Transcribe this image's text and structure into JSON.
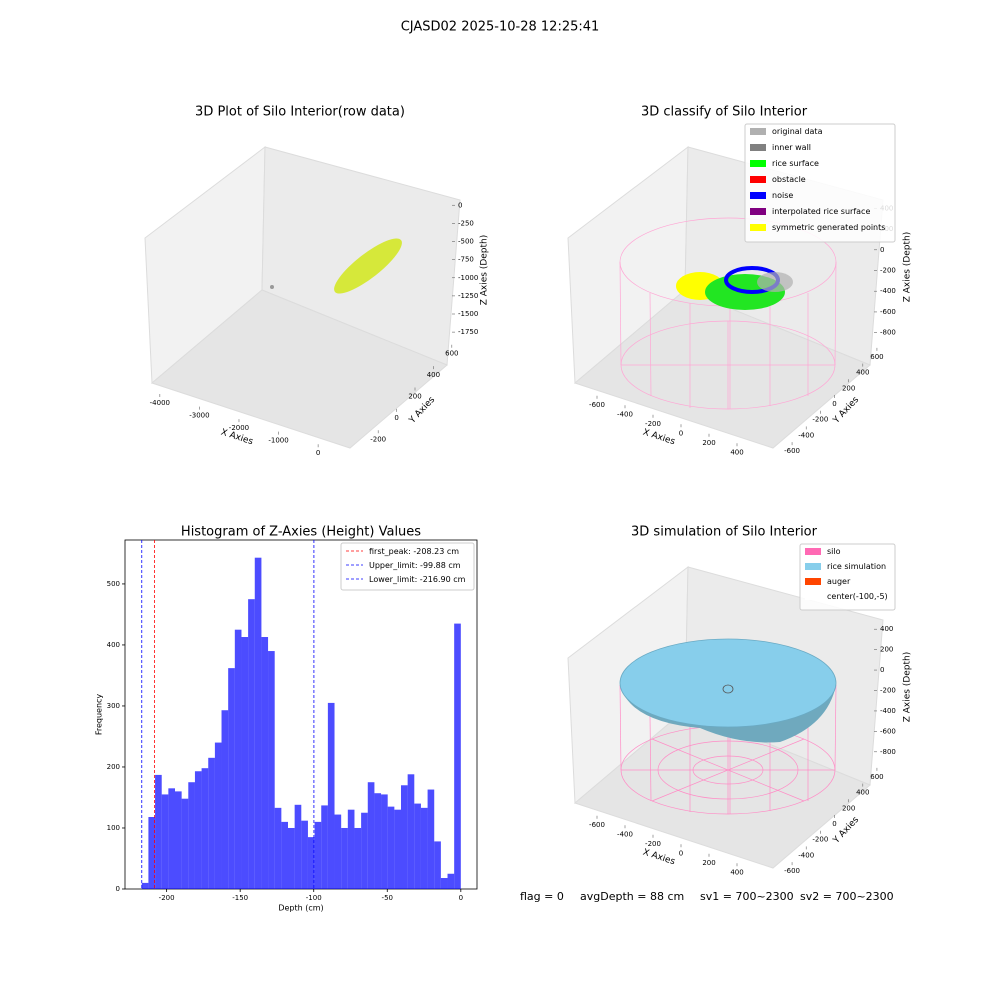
{
  "title": "CJASD02 2025-10-28 12:25:41",
  "chart_data": [
    {
      "type": "scatter3d",
      "title": "3D Plot of Silo Interior(row data)",
      "xlabel": "X Axies",
      "ylabel": "Y Axies",
      "zlabel": "Z Axies (Depth)",
      "xlim": [
        -4400,
        300
      ],
      "xticks": [
        -4000,
        -3000,
        -2000,
        -1000,
        0
      ],
      "ylim": [
        -300,
        700
      ],
      "yticks": [
        -200,
        0,
        200,
        400,
        600
      ],
      "zlim": [
        -1900,
        100
      ],
      "zticks": [
        -1750,
        -1500,
        -1250,
        -1000,
        -750,
        -500,
        -250,
        0
      ]
    },
    {
      "type": "scatter3d",
      "title": "3D classify of Silo Interior",
      "xlabel": "X Axies",
      "ylabel": "Y Axies",
      "zlabel": "Z Axies (Depth)",
      "xlim": [
        -700,
        500
      ],
      "xticks": [
        -600,
        -400,
        -200,
        0,
        200,
        400
      ],
      "ylim": [
        -700,
        700
      ],
      "yticks": [
        -600,
        -400,
        -200,
        0,
        200,
        400,
        600
      ],
      "zlim": [
        -900,
        500
      ],
      "zticks": [
        -800,
        -600,
        -400,
        -200,
        0,
        200,
        400
      ],
      "legend": [
        {
          "name": "original data",
          "color": "#b0b0b0"
        },
        {
          "name": "inner wall",
          "color": "#808080"
        },
        {
          "name": "rice surface",
          "color": "#00ff00"
        },
        {
          "name": "obstacle",
          "color": "#ff0000"
        },
        {
          "name": "noise",
          "color": "#0000ff"
        },
        {
          "name": "interpolated rice surface",
          "color": "#800080"
        },
        {
          "name": "symmetric generated points",
          "color": "#ffff00"
        }
      ]
    },
    {
      "type": "histogram",
      "title": "Histogram of Z-Axies (Height) Values",
      "xlabel": "Depth (cm)",
      "ylabel": "Frequency",
      "color": "#0000ff",
      "alpha": 0.7,
      "bins": [
        -216.9,
        -212.38,
        -207.86,
        -203.34,
        -198.83,
        -194.31,
        -189.79,
        -185.27,
        -180.75,
        -176.23,
        -171.71,
        -167.19,
        -162.68,
        -158.16,
        -153.64,
        -149.12,
        -144.6,
        -140.08,
        -135.56,
        -131.04,
        -126.53,
        -122.01,
        -117.49,
        -112.97,
        -108.45,
        -103.93,
        -99.41,
        -94.89,
        -90.38,
        -85.86,
        -81.34,
        -76.82,
        -72.3,
        -67.78,
        -63.26,
        -58.74,
        -54.23,
        -49.71,
        -45.19,
        -40.67,
        -36.15,
        -31.63,
        -27.11,
        -22.59,
        -18.08,
        -13.56,
        -9.04,
        -4.52,
        0
      ],
      "counts": [
        10,
        118,
        187,
        155,
        165,
        160,
        148,
        175,
        193,
        198,
        215,
        240,
        293,
        362,
        425,
        413,
        475,
        543,
        413,
        390,
        133,
        110,
        100,
        138,
        112,
        85,
        110,
        137,
        305,
        122,
        100,
        130,
        100,
        125,
        175,
        157,
        155,
        135,
        130,
        170,
        188,
        140,
        133,
        163,
        78,
        18,
        25,
        435
      ],
      "xlim": [
        -228.3,
        11
      ],
      "xticks": [
        -200,
        -150,
        -100,
        -50,
        0
      ],
      "ylim": [
        0,
        572
      ],
      "yticks": [
        0,
        100,
        200,
        300,
        400,
        500
      ],
      "lines": [
        {
          "value": -208.23,
          "label": "first_peak: -208.23 cm",
          "color": "#ff0000"
        },
        {
          "value": -99.88,
          "label": "Upper_limit: -99.88 cm",
          "color": "#0000ff"
        },
        {
          "value": -216.9,
          "label": "Lower_limit: -216.90 cm",
          "color": "#0000ff"
        }
      ],
      "legend_loc": "upper right"
    },
    {
      "type": "scatter3d",
      "title": "3D simulation of Silo Interior",
      "xlabel": "X Axies",
      "ylabel": "Y Axies",
      "zlabel": "Z Axies (Depth)",
      "xlim": [
        -700,
        500
      ],
      "xticks": [
        -600,
        -400,
        -200,
        0,
        200,
        400
      ],
      "ylim": [
        -700,
        700
      ],
      "yticks": [
        -600,
        -400,
        -200,
        0,
        200,
        400,
        600
      ],
      "zlim": [
        -900,
        500
      ],
      "zticks": [
        -800,
        -600,
        -400,
        -200,
        0,
        200,
        400
      ],
      "legend": [
        {
          "name": "silo",
          "color": "#ff69b4"
        },
        {
          "name": "rice simulation",
          "color": "#87ceeb"
        },
        {
          "name": "auger",
          "color": "#ff4500"
        },
        {
          "name": "center(-100,-5)",
          "color": "#ffffff"
        }
      ]
    }
  ],
  "status": [
    "flag = 0",
    "avgDepth = 88 cm",
    "sv1 = 700~2300",
    "sv2 = 700~2300"
  ]
}
